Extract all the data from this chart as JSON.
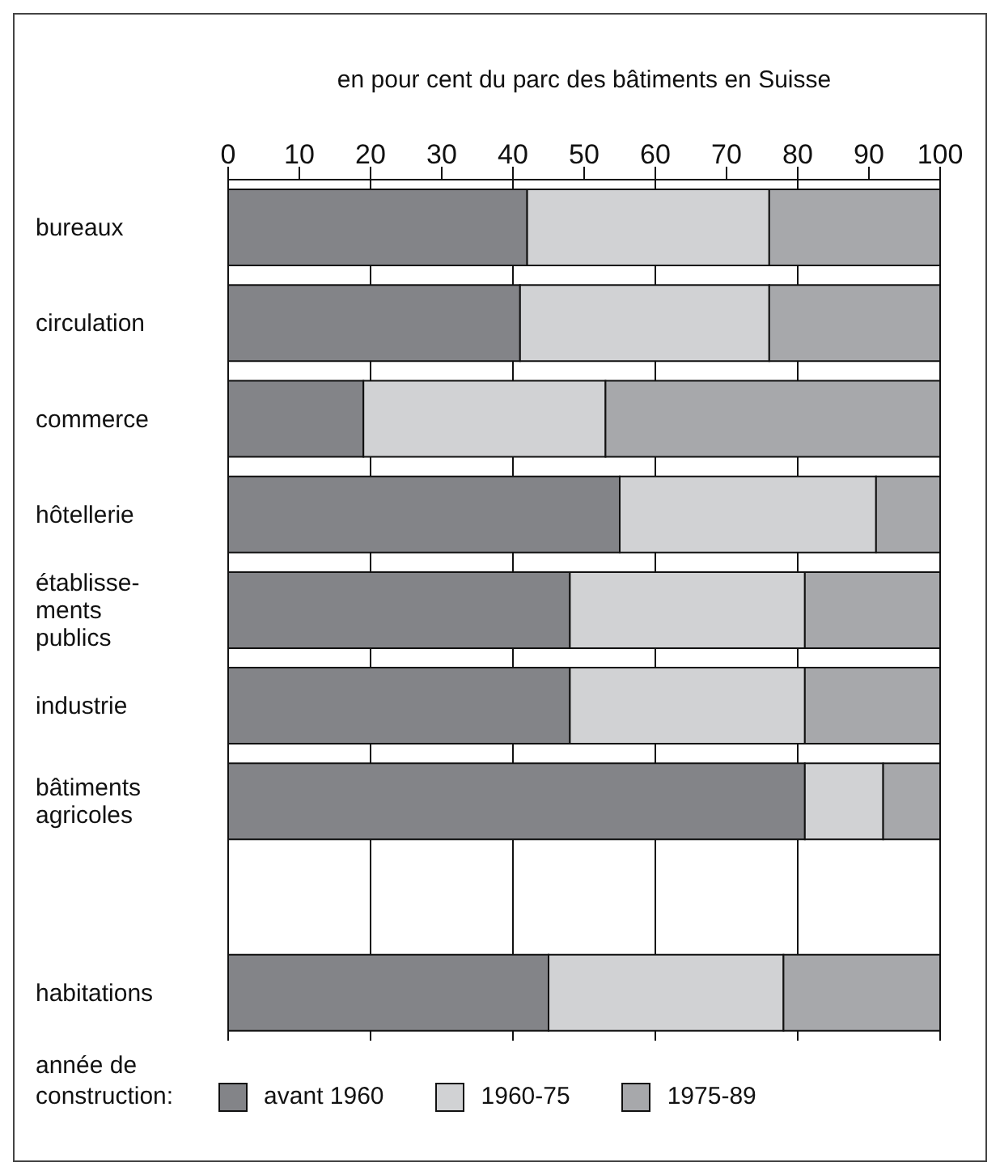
{
  "chart_data": {
    "type": "bar",
    "orientation": "horizontal",
    "stacked": true,
    "xlabel": "en pour cent du parc des bâtiments en Suisse",
    "categories": [
      "bureaux",
      "circulation",
      "commerce",
      "hôtellerie",
      "établisse-\nments\npublics",
      "industrie",
      "bâtiments\nagricoles",
      null,
      "habitations"
    ],
    "series": [
      {
        "name": "avant 1960",
        "color": "#838488",
        "values": [
          42,
          41,
          19,
          55,
          48,
          48,
          81,
          null,
          45
        ]
      },
      {
        "name": "1960-75",
        "color": "#d1d2d4",
        "values": [
          34,
          35,
          34,
          36,
          33,
          33,
          11,
          null,
          33
        ]
      },
      {
        "name": "1975-89",
        "color": "#a7a8ab",
        "values": [
          24,
          24,
          47,
          9,
          19,
          19,
          8,
          null,
          22
        ]
      }
    ],
    "xlim": [
      0,
      100
    ],
    "xticks": [
      0,
      10,
      20,
      30,
      40,
      50,
      60,
      70,
      80,
      90,
      100
    ],
    "grid": "x",
    "legend": "bottom",
    "legend_title": "année de\nconstruction:"
  }
}
